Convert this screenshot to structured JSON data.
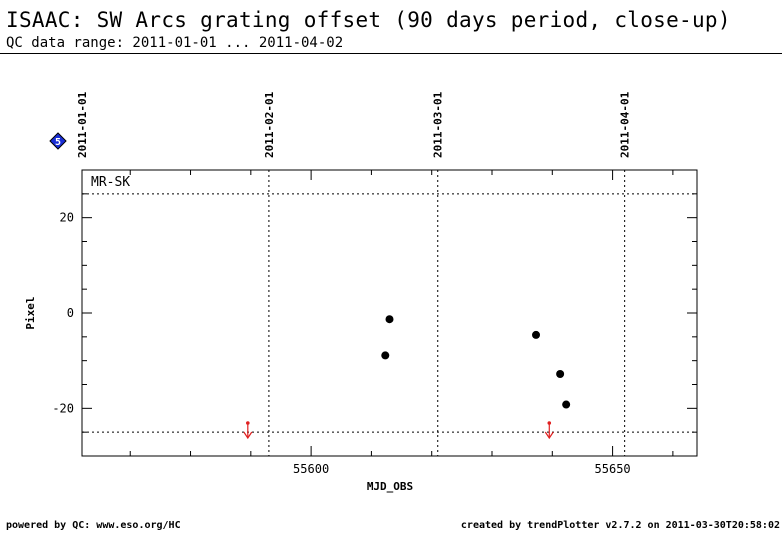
{
  "header": {
    "title": "ISAAC: SW Arcs grating offset (90 days period, close-up)",
    "subtitle": "QC data range: 2011-01-01 ... 2011-04-02"
  },
  "footer": {
    "left": "powered by QC: www.eso.org/HC",
    "right": "created by trendPlotter v2.7.2 on 2011-03-30T20:58:02"
  },
  "badge": {
    "label": "5",
    "color": "#1a2fd6"
  },
  "chart_data": {
    "type": "scatter",
    "panel_label": "MR-SK",
    "xlabel": "MJD_OBS",
    "ylabel": "Pixel",
    "xlim": [
      55562,
      55664
    ],
    "ylim": [
      -30,
      30
    ],
    "x_ticks": [
      55600,
      55650
    ],
    "y_ticks": [
      -20,
      0,
      20
    ],
    "date_markers": [
      {
        "label": "2011-01-01",
        "mjd": 55562
      },
      {
        "label": "2011-02-01",
        "mjd": 55593
      },
      {
        "label": "2011-03-01",
        "mjd": 55621
      },
      {
        "label": "2011-04-01",
        "mjd": 55652
      }
    ],
    "thresholds": [
      25,
      -25
    ],
    "points": [
      {
        "x": 55613.0,
        "y": -1.3
      },
      {
        "x": 55612.3,
        "y": -8.9
      },
      {
        "x": 55637.3,
        "y": -4.6
      },
      {
        "x": 55641.3,
        "y": -12.8
      },
      {
        "x": 55642.3,
        "y": -19.2
      }
    ],
    "outliers": [
      {
        "x": 55589.5,
        "direction": "below"
      },
      {
        "x": 55639.5,
        "direction": "below"
      }
    ],
    "colors": {
      "points": "#000000",
      "outliers": "#e02020"
    },
    "grid": false
  }
}
